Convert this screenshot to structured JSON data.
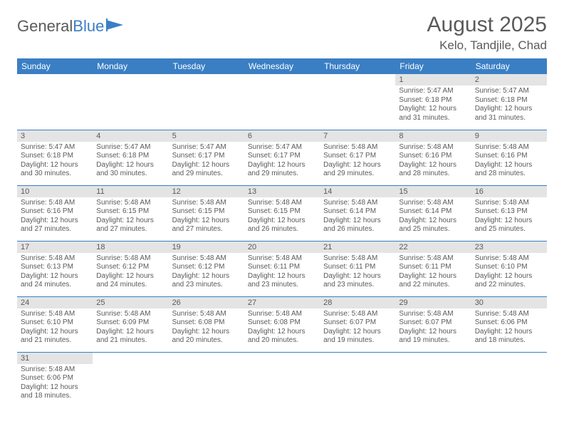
{
  "logo": {
    "text1": "General",
    "text2": "Blue"
  },
  "title": "August 2025",
  "location": "Kelo, Tandjile, Chad",
  "weekdays": [
    "Sunday",
    "Monday",
    "Tuesday",
    "Wednesday",
    "Thursday",
    "Friday",
    "Saturday"
  ],
  "colors": {
    "header_bg": "#3a7fc4",
    "daynum_bg": "#e4e4e4",
    "border": "#3a7fc4"
  },
  "weeks": [
    [
      null,
      null,
      null,
      null,
      null,
      {
        "n": "1",
        "sr": "Sunrise: 5:47 AM",
        "ss": "Sunset: 6:18 PM",
        "d1": "Daylight: 12 hours",
        "d2": "and 31 minutes."
      },
      {
        "n": "2",
        "sr": "Sunrise: 5:47 AM",
        "ss": "Sunset: 6:18 PM",
        "d1": "Daylight: 12 hours",
        "d2": "and 31 minutes."
      }
    ],
    [
      {
        "n": "3",
        "sr": "Sunrise: 5:47 AM",
        "ss": "Sunset: 6:18 PM",
        "d1": "Daylight: 12 hours",
        "d2": "and 30 minutes."
      },
      {
        "n": "4",
        "sr": "Sunrise: 5:47 AM",
        "ss": "Sunset: 6:18 PM",
        "d1": "Daylight: 12 hours",
        "d2": "and 30 minutes."
      },
      {
        "n": "5",
        "sr": "Sunrise: 5:47 AM",
        "ss": "Sunset: 6:17 PM",
        "d1": "Daylight: 12 hours",
        "d2": "and 29 minutes."
      },
      {
        "n": "6",
        "sr": "Sunrise: 5:47 AM",
        "ss": "Sunset: 6:17 PM",
        "d1": "Daylight: 12 hours",
        "d2": "and 29 minutes."
      },
      {
        "n": "7",
        "sr": "Sunrise: 5:48 AM",
        "ss": "Sunset: 6:17 PM",
        "d1": "Daylight: 12 hours",
        "d2": "and 29 minutes."
      },
      {
        "n": "8",
        "sr": "Sunrise: 5:48 AM",
        "ss": "Sunset: 6:16 PM",
        "d1": "Daylight: 12 hours",
        "d2": "and 28 minutes."
      },
      {
        "n": "9",
        "sr": "Sunrise: 5:48 AM",
        "ss": "Sunset: 6:16 PM",
        "d1": "Daylight: 12 hours",
        "d2": "and 28 minutes."
      }
    ],
    [
      {
        "n": "10",
        "sr": "Sunrise: 5:48 AM",
        "ss": "Sunset: 6:16 PM",
        "d1": "Daylight: 12 hours",
        "d2": "and 27 minutes."
      },
      {
        "n": "11",
        "sr": "Sunrise: 5:48 AM",
        "ss": "Sunset: 6:15 PM",
        "d1": "Daylight: 12 hours",
        "d2": "and 27 minutes."
      },
      {
        "n": "12",
        "sr": "Sunrise: 5:48 AM",
        "ss": "Sunset: 6:15 PM",
        "d1": "Daylight: 12 hours",
        "d2": "and 27 minutes."
      },
      {
        "n": "13",
        "sr": "Sunrise: 5:48 AM",
        "ss": "Sunset: 6:15 PM",
        "d1": "Daylight: 12 hours",
        "d2": "and 26 minutes."
      },
      {
        "n": "14",
        "sr": "Sunrise: 5:48 AM",
        "ss": "Sunset: 6:14 PM",
        "d1": "Daylight: 12 hours",
        "d2": "and 26 minutes."
      },
      {
        "n": "15",
        "sr": "Sunrise: 5:48 AM",
        "ss": "Sunset: 6:14 PM",
        "d1": "Daylight: 12 hours",
        "d2": "and 25 minutes."
      },
      {
        "n": "16",
        "sr": "Sunrise: 5:48 AM",
        "ss": "Sunset: 6:13 PM",
        "d1": "Daylight: 12 hours",
        "d2": "and 25 minutes."
      }
    ],
    [
      {
        "n": "17",
        "sr": "Sunrise: 5:48 AM",
        "ss": "Sunset: 6:13 PM",
        "d1": "Daylight: 12 hours",
        "d2": "and 24 minutes."
      },
      {
        "n": "18",
        "sr": "Sunrise: 5:48 AM",
        "ss": "Sunset: 6:12 PM",
        "d1": "Daylight: 12 hours",
        "d2": "and 24 minutes."
      },
      {
        "n": "19",
        "sr": "Sunrise: 5:48 AM",
        "ss": "Sunset: 6:12 PM",
        "d1": "Daylight: 12 hours",
        "d2": "and 23 minutes."
      },
      {
        "n": "20",
        "sr": "Sunrise: 5:48 AM",
        "ss": "Sunset: 6:11 PM",
        "d1": "Daylight: 12 hours",
        "d2": "and 23 minutes."
      },
      {
        "n": "21",
        "sr": "Sunrise: 5:48 AM",
        "ss": "Sunset: 6:11 PM",
        "d1": "Daylight: 12 hours",
        "d2": "and 23 minutes."
      },
      {
        "n": "22",
        "sr": "Sunrise: 5:48 AM",
        "ss": "Sunset: 6:11 PM",
        "d1": "Daylight: 12 hours",
        "d2": "and 22 minutes."
      },
      {
        "n": "23",
        "sr": "Sunrise: 5:48 AM",
        "ss": "Sunset: 6:10 PM",
        "d1": "Daylight: 12 hours",
        "d2": "and 22 minutes."
      }
    ],
    [
      {
        "n": "24",
        "sr": "Sunrise: 5:48 AM",
        "ss": "Sunset: 6:10 PM",
        "d1": "Daylight: 12 hours",
        "d2": "and 21 minutes."
      },
      {
        "n": "25",
        "sr": "Sunrise: 5:48 AM",
        "ss": "Sunset: 6:09 PM",
        "d1": "Daylight: 12 hours",
        "d2": "and 21 minutes."
      },
      {
        "n": "26",
        "sr": "Sunrise: 5:48 AM",
        "ss": "Sunset: 6:08 PM",
        "d1": "Daylight: 12 hours",
        "d2": "and 20 minutes."
      },
      {
        "n": "27",
        "sr": "Sunrise: 5:48 AM",
        "ss": "Sunset: 6:08 PM",
        "d1": "Daylight: 12 hours",
        "d2": "and 20 minutes."
      },
      {
        "n": "28",
        "sr": "Sunrise: 5:48 AM",
        "ss": "Sunset: 6:07 PM",
        "d1": "Daylight: 12 hours",
        "d2": "and 19 minutes."
      },
      {
        "n": "29",
        "sr": "Sunrise: 5:48 AM",
        "ss": "Sunset: 6:07 PM",
        "d1": "Daylight: 12 hours",
        "d2": "and 19 minutes."
      },
      {
        "n": "30",
        "sr": "Sunrise: 5:48 AM",
        "ss": "Sunset: 6:06 PM",
        "d1": "Daylight: 12 hours",
        "d2": "and 18 minutes."
      }
    ],
    [
      {
        "n": "31",
        "sr": "Sunrise: 5:48 AM",
        "ss": "Sunset: 6:06 PM",
        "d1": "Daylight: 12 hours",
        "d2": "and 18 minutes."
      },
      null,
      null,
      null,
      null,
      null,
      null
    ]
  ]
}
